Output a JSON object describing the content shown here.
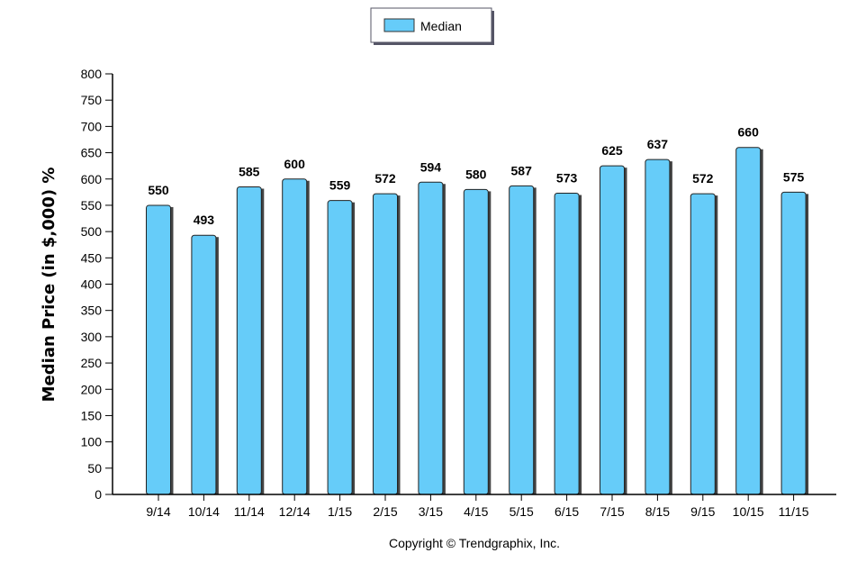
{
  "chart_data": {
    "type": "bar",
    "categories": [
      "9/14",
      "10/14",
      "11/14",
      "12/14",
      "1/15",
      "2/15",
      "3/15",
      "4/15",
      "5/15",
      "6/15",
      "7/15",
      "8/15",
      "9/15",
      "10/15",
      "11/15"
    ],
    "series": [
      {
        "name": "Median",
        "values": [
          550,
          493,
          585,
          600,
          559,
          572,
          594,
          580,
          587,
          573,
          625,
          637,
          572,
          660,
          575
        ],
        "color": "#66ccf9"
      }
    ],
    "data_labels": [
      "550",
      "493",
      "585",
      "600",
      "559",
      "572",
      "594",
      "580",
      "587",
      "573",
      "625",
      "637",
      "572",
      "660",
      "575"
    ],
    "title": "",
    "xlabel": "",
    "ylabel": "Median Price (in $,000) %",
    "ylim": [
      0,
      800
    ],
    "ytick_step": 50,
    "yticks": [
      "0",
      "50",
      "100",
      "150",
      "200",
      "250",
      "300",
      "350",
      "400",
      "450",
      "500",
      "550",
      "600",
      "650",
      "700",
      "750",
      "800"
    ],
    "grid": false,
    "legend_position": "top-center"
  },
  "legend": {
    "label": "Median"
  },
  "footer": {
    "copyright": "Copyright © Trendgraphix, Inc."
  }
}
